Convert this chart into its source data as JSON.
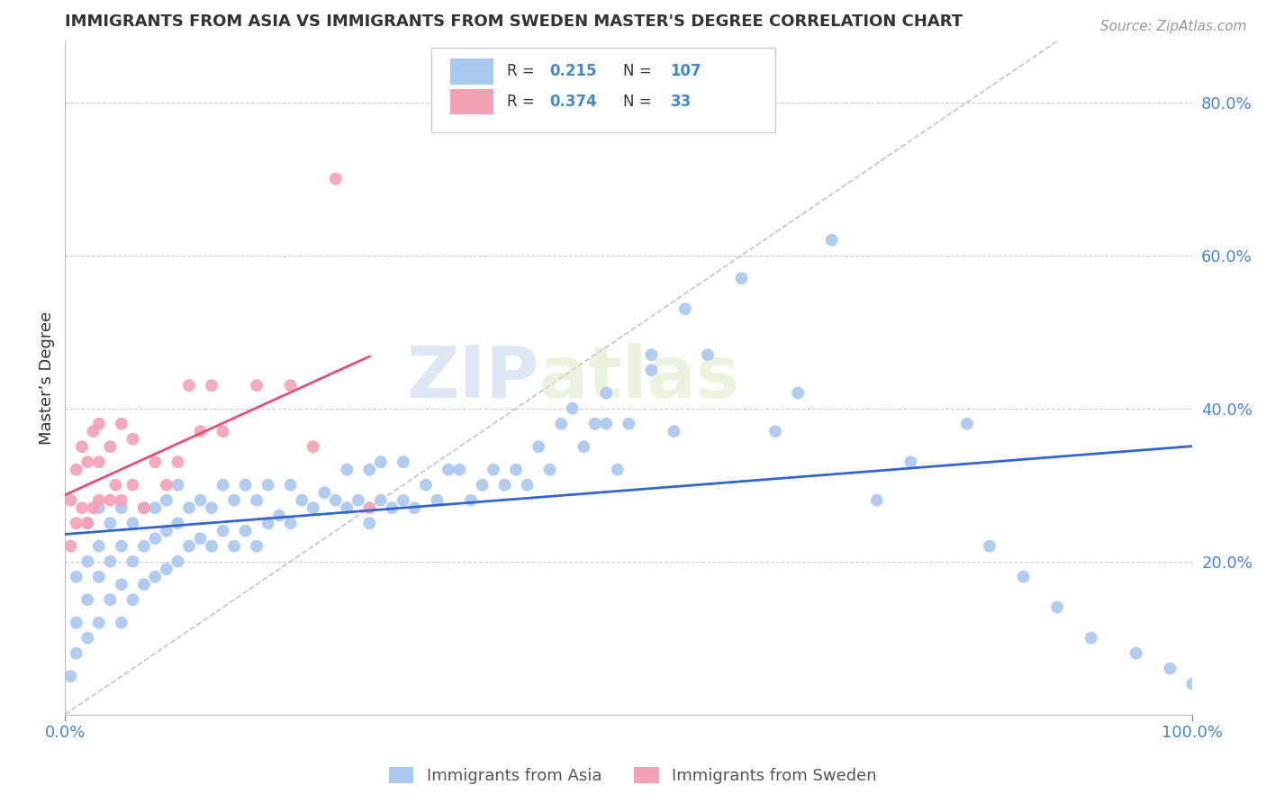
{
  "title": "IMMIGRANTS FROM ASIA VS IMMIGRANTS FROM SWEDEN MASTER'S DEGREE CORRELATION CHART",
  "source_text": "Source: ZipAtlas.com",
  "ylabel": "Master’s Degree",
  "x_min": 0.0,
  "x_max": 1.0,
  "y_min": 0.0,
  "y_max": 0.88,
  "y_ticks": [
    0.2,
    0.4,
    0.6,
    0.8
  ],
  "y_tick_labels": [
    "20.0%",
    "40.0%",
    "60.0%",
    "80.0%"
  ],
  "x_ticks": [
    0.0,
    1.0
  ],
  "x_tick_labels": [
    "0.0%",
    "100.0%"
  ],
  "series_asia": {
    "label": "Immigrants from Asia",
    "color": "#a8c8f0",
    "line_color": "#3366cc",
    "R": 0.215,
    "N": 107,
    "x": [
      0.005,
      0.01,
      0.01,
      0.01,
      0.02,
      0.02,
      0.02,
      0.02,
      0.03,
      0.03,
      0.03,
      0.03,
      0.04,
      0.04,
      0.04,
      0.05,
      0.05,
      0.05,
      0.05,
      0.06,
      0.06,
      0.06,
      0.07,
      0.07,
      0.07,
      0.08,
      0.08,
      0.08,
      0.09,
      0.09,
      0.09,
      0.1,
      0.1,
      0.1,
      0.11,
      0.11,
      0.12,
      0.12,
      0.13,
      0.13,
      0.14,
      0.14,
      0.15,
      0.15,
      0.16,
      0.16,
      0.17,
      0.17,
      0.18,
      0.18,
      0.19,
      0.2,
      0.2,
      0.21,
      0.22,
      0.23,
      0.24,
      0.25,
      0.25,
      0.26,
      0.27,
      0.27,
      0.28,
      0.28,
      0.29,
      0.3,
      0.3,
      0.31,
      0.32,
      0.33,
      0.34,
      0.35,
      0.36,
      0.37,
      0.38,
      0.39,
      0.4,
      0.41,
      0.42,
      0.43,
      0.44,
      0.45,
      0.46,
      0.47,
      0.48,
      0.49,
      0.5,
      0.52,
      0.54,
      0.55,
      0.57,
      0.6,
      0.63,
      0.65,
      0.68,
      0.72,
      0.75,
      0.8,
      0.82,
      0.85,
      0.88,
      0.91,
      0.95,
      0.98,
      1.0,
      0.52,
      0.48
    ],
    "y": [
      0.05,
      0.08,
      0.12,
      0.18,
      0.1,
      0.15,
      0.2,
      0.25,
      0.12,
      0.18,
      0.22,
      0.27,
      0.15,
      0.2,
      0.25,
      0.12,
      0.17,
      0.22,
      0.27,
      0.15,
      0.2,
      0.25,
      0.17,
      0.22,
      0.27,
      0.18,
      0.23,
      0.27,
      0.19,
      0.24,
      0.28,
      0.2,
      0.25,
      0.3,
      0.22,
      0.27,
      0.23,
      0.28,
      0.22,
      0.27,
      0.24,
      0.3,
      0.22,
      0.28,
      0.24,
      0.3,
      0.22,
      0.28,
      0.25,
      0.3,
      0.26,
      0.25,
      0.3,
      0.28,
      0.27,
      0.29,
      0.28,
      0.27,
      0.32,
      0.28,
      0.25,
      0.32,
      0.28,
      0.33,
      0.27,
      0.28,
      0.33,
      0.27,
      0.3,
      0.28,
      0.32,
      0.32,
      0.28,
      0.3,
      0.32,
      0.3,
      0.32,
      0.3,
      0.35,
      0.32,
      0.38,
      0.4,
      0.35,
      0.38,
      0.38,
      0.32,
      0.38,
      0.47,
      0.37,
      0.53,
      0.47,
      0.57,
      0.37,
      0.42,
      0.62,
      0.28,
      0.33,
      0.38,
      0.22,
      0.18,
      0.14,
      0.1,
      0.08,
      0.06,
      0.04,
      0.45,
      0.42
    ]
  },
  "series_sweden": {
    "label": "Immigrants from Sweden",
    "color": "#f4a0b5",
    "line_color": "#e0507a",
    "R": 0.374,
    "N": 33,
    "x": [
      0.005,
      0.005,
      0.01,
      0.01,
      0.015,
      0.015,
      0.02,
      0.02,
      0.025,
      0.025,
      0.03,
      0.03,
      0.03,
      0.04,
      0.04,
      0.045,
      0.05,
      0.05,
      0.06,
      0.06,
      0.07,
      0.08,
      0.09,
      0.1,
      0.11,
      0.12,
      0.13,
      0.14,
      0.17,
      0.2,
      0.22,
      0.24,
      0.27
    ],
    "y": [
      0.22,
      0.28,
      0.25,
      0.32,
      0.27,
      0.35,
      0.25,
      0.33,
      0.27,
      0.37,
      0.28,
      0.33,
      0.38,
      0.28,
      0.35,
      0.3,
      0.28,
      0.38,
      0.3,
      0.36,
      0.27,
      0.33,
      0.3,
      0.33,
      0.43,
      0.37,
      0.43,
      0.37,
      0.43,
      0.43,
      0.35,
      0.7,
      0.27
    ]
  },
  "watermark_zip": "ZIP",
  "watermark_atlas": "atlas",
  "title_color": "#333333",
  "tick_label_color": "#4488cc",
  "grid_color": "#cccccc",
  "background_color": "#ffffff",
  "legend_R_color": "#4488cc",
  "legend_N_color": "#4488cc"
}
